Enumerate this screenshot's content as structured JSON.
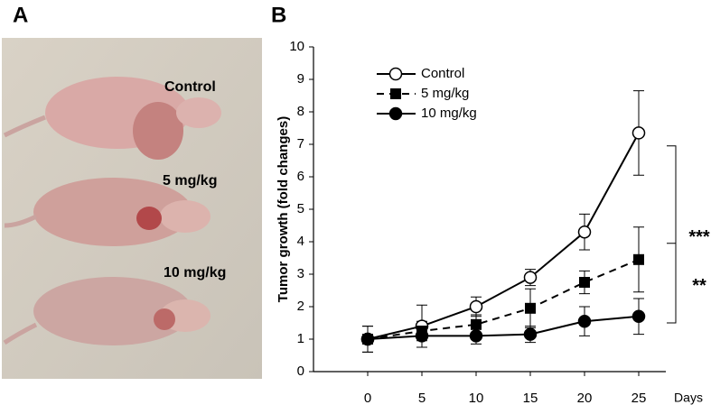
{
  "panel_labels": [
    "A",
    "B"
  ],
  "photo_labels": [
    "Control",
    "5 mg/kg",
    "10 mg/kg"
  ],
  "chart_data": {
    "type": "line",
    "y_label": "Tumor growth (fold changes)",
    "x_label": "Days",
    "x": [
      0,
      5,
      10,
      15,
      20,
      25
    ],
    "xlim": [
      -5,
      27.5
    ],
    "xticks": [
      0,
      5,
      10,
      15,
      20,
      25
    ],
    "ylim": [
      0,
      10
    ],
    "yticks": [
      0,
      1,
      2,
      3,
      4,
      5,
      6,
      7,
      8,
      9,
      10
    ],
    "legend": "upper-left",
    "series": [
      {
        "name": "Control",
        "color": "#000000",
        "line": "solid",
        "marker": "open-circle",
        "values": [
          1.0,
          1.4,
          2.0,
          2.9,
          4.3,
          7.35
        ],
        "errors": [
          0.4,
          0.65,
          0.3,
          0.25,
          0.55,
          1.3
        ]
      },
      {
        "name": "5 mg/kg",
        "color": "#000000",
        "line": "dash",
        "marker": "square",
        "values": [
          1.0,
          1.25,
          1.45,
          1.95,
          2.75,
          3.45
        ],
        "errors": [
          0.15,
          0.3,
          0.3,
          0.6,
          0.35,
          1.0
        ]
      },
      {
        "name": "10 mg/kg",
        "color": "#000000",
        "line": "solid",
        "marker": "circle",
        "values": [
          1.0,
          1.1,
          1.1,
          1.15,
          1.55,
          1.7
        ],
        "errors": [
          0.4,
          0.35,
          0.25,
          0.25,
          0.45,
          0.55
        ]
      }
    ],
    "annotations": [
      "***",
      "**"
    ]
  }
}
